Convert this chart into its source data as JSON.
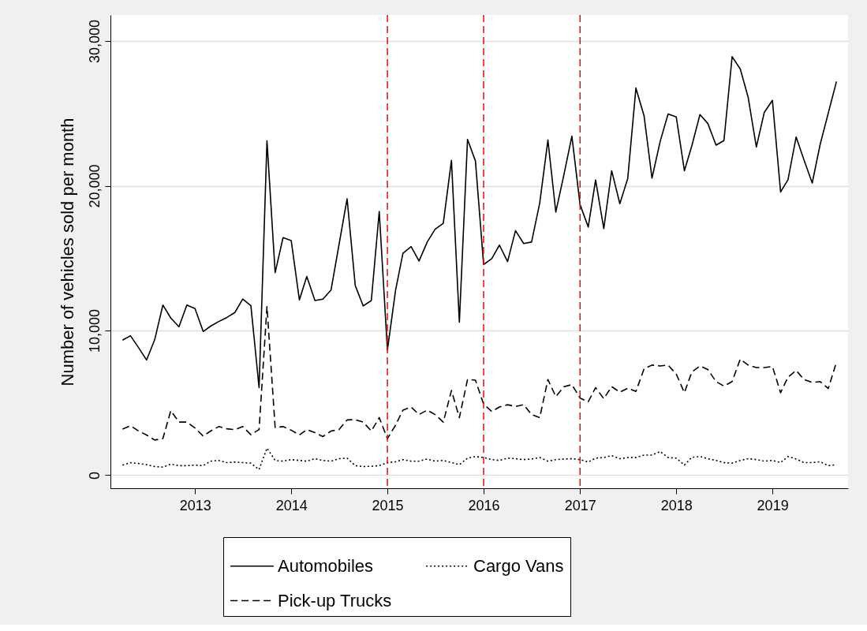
{
  "chart_data": {
    "type": "line",
    "ylabel": "Number of vehicles sold per month",
    "x": [
      "2012-04",
      "2012-05",
      "2012-06",
      "2012-07",
      "2012-08",
      "2012-09",
      "2012-10",
      "2012-11",
      "2012-12",
      "2013-01",
      "2013-02",
      "2013-03",
      "2013-04",
      "2013-05",
      "2013-06",
      "2013-07",
      "2013-08",
      "2013-09",
      "2013-10",
      "2013-11",
      "2013-12",
      "2014-01",
      "2014-02",
      "2014-03",
      "2014-04",
      "2014-05",
      "2014-06",
      "2014-07",
      "2014-08",
      "2014-09",
      "2014-10",
      "2014-11",
      "2014-12",
      "2015-01",
      "2015-02",
      "2015-03",
      "2015-04",
      "2015-05",
      "2015-06",
      "2015-07",
      "2015-08",
      "2015-09",
      "2015-10",
      "2015-11",
      "2015-12",
      "2016-01",
      "2016-02",
      "2016-03",
      "2016-04",
      "2016-05",
      "2016-06",
      "2016-07",
      "2016-08",
      "2016-09",
      "2016-10",
      "2016-11",
      "2016-12",
      "2017-01",
      "2017-02",
      "2017-03",
      "2017-04",
      "2017-05",
      "2017-06",
      "2017-07",
      "2017-08",
      "2017-09",
      "2017-10",
      "2017-11",
      "2017-12",
      "2018-01",
      "2018-02",
      "2018-03",
      "2018-04",
      "2018-05",
      "2018-06",
      "2018-07",
      "2018-08",
      "2018-09",
      "2018-10",
      "2018-11",
      "2018-12",
      "2019-01",
      "2019-02",
      "2019-03",
      "2019-04",
      "2019-05",
      "2019-06",
      "2019-07",
      "2019-08",
      "2019-09"
    ],
    "series": [
      {
        "name": "Automobiles",
        "color": "#000000",
        "line_style": "solid",
        "values": [
          9330,
          9640,
          8810,
          7960,
          9370,
          11760,
          10860,
          10260,
          11760,
          11510,
          9930,
          10300,
          10620,
          10890,
          11240,
          12170,
          11710,
          6050,
          23100,
          14000,
          16420,
          16210,
          12110,
          13730,
          12070,
          12170,
          12790,
          15900,
          19100,
          13100,
          11700,
          12070,
          18220,
          8650,
          12790,
          15340,
          15800,
          14800,
          16110,
          17000,
          17400,
          21750,
          10570,
          23200,
          21710,
          14560,
          14970,
          15900,
          14760,
          16900,
          16010,
          16110,
          18810,
          23160,
          18180,
          20780,
          23430,
          18700,
          17150,
          20400,
          17040,
          21040,
          18760,
          20510,
          26750,
          24820,
          20530,
          23060,
          24960,
          24760,
          21040,
          22750,
          24920,
          24300,
          22810,
          23120,
          28920,
          28070,
          26100,
          22680,
          25070,
          25900,
          19570,
          20420,
          23370,
          21770,
          20190,
          22850,
          25030,
          27200
        ]
      },
      {
        "name": "Pick-up Trucks",
        "color": "#000000",
        "line_style": "dashed",
        "values": [
          3190,
          3420,
          3050,
          2780,
          2430,
          2530,
          4460,
          3670,
          3670,
          3260,
          2700,
          3050,
          3360,
          3210,
          3150,
          3360,
          2800,
          3150,
          11650,
          3300,
          3360,
          3110,
          2780,
          3150,
          2940,
          2670,
          3050,
          3150,
          3820,
          3840,
          3670,
          3050,
          3980,
          2530,
          3460,
          4500,
          4710,
          4190,
          4500,
          4190,
          3670,
          5850,
          3980,
          6610,
          6570,
          4910,
          4400,
          4710,
          4870,
          4750,
          4870,
          4190,
          3980,
          6610,
          5430,
          6120,
          6260,
          5330,
          5080,
          6050,
          5290,
          6120,
          5740,
          6010,
          5790,
          7360,
          7610,
          7550,
          7610,
          6990,
          5700,
          7130,
          7550,
          7300,
          6470,
          6160,
          6470,
          8020,
          7610,
          7440,
          7440,
          7510,
          5700,
          6780,
          7240,
          6610,
          6410,
          6470,
          5990,
          7820
        ]
      },
      {
        "name": "Cargo Vans",
        "color": "#000000",
        "line_style": "dotted",
        "values": [
          700,
          870,
          810,
          730,
          600,
          560,
          770,
          660,
          660,
          700,
          660,
          970,
          1020,
          870,
          910,
          870,
          830,
          390,
          1870,
          1020,
          970,
          1080,
          1020,
          970,
          1140,
          1020,
          970,
          1140,
          1180,
          660,
          600,
          620,
          660,
          870,
          930,
          1080,
          970,
          970,
          1120,
          970,
          1020,
          870,
          730,
          1180,
          1290,
          1220,
          1080,
          1020,
          1180,
          1140,
          1080,
          1120,
          1220,
          970,
          1080,
          1120,
          1140,
          1080,
          910,
          1180,
          1220,
          1350,
          1140,
          1220,
          1220,
          1390,
          1390,
          1640,
          1220,
          1180,
          700,
          1240,
          1290,
          1140,
          1020,
          870,
          830,
          1020,
          1140,
          1080,
          970,
          1020,
          870,
          1290,
          1120,
          870,
          870,
          930,
          660,
          730
        ]
      }
    ],
    "xlim": [
      "2012-02-15",
      "2019-10-15"
    ],
    "xticks": [
      "2013",
      "2014",
      "2015",
      "2016",
      "2017",
      "2018",
      "2019"
    ],
    "ylim": [
      -900,
      31800
    ],
    "yticks": [
      0,
      {
        "value": 10000,
        "label": "10,000"
      },
      {
        "value": 20000,
        "label": "20,000"
      },
      {
        "value": 30000,
        "label": "30,000"
      }
    ],
    "grid": "y",
    "legend": "bottom",
    "ref_lines": [
      {
        "axis": "x",
        "value": "2015",
        "color": "#ff0000",
        "line_style": "dashed"
      },
      {
        "axis": "x",
        "value": "2016",
        "color": "#ff0000",
        "line_style": "dashed"
      },
      {
        "axis": "x",
        "value": "2017",
        "color": "#ff0000",
        "line_style": "dashed"
      }
    ]
  }
}
